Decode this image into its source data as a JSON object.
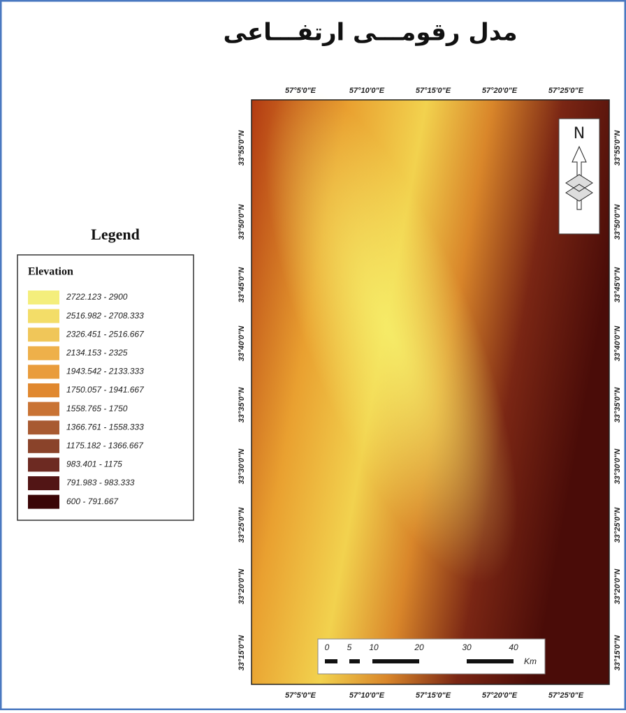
{
  "title": "مدل رقومـــی ارتفـــاعی",
  "legend": {
    "title": "Legend",
    "field": "Elevation",
    "items": [
      {
        "label": "2722.123 - 2900",
        "color": "#f4ee7c"
      },
      {
        "label": "2516.982 - 2708.333",
        "color": "#f3dd68"
      },
      {
        "label": "2326.451 - 2516.667",
        "color": "#f0c659"
      },
      {
        "label": "2134.153 - 2325",
        "color": "#eeb04a"
      },
      {
        "label": "1943.542 - 2133.333",
        "color": "#e99c3c"
      },
      {
        "label": "1750.057 - 1941.667",
        "color": "#e0882f"
      },
      {
        "label": "1558.765 - 1750",
        "color": "#c97334"
      },
      {
        "label": "1366.761 - 1558.333",
        "color": "#a85a31"
      },
      {
        "label": "1175.182 - 1366.667",
        "color": "#8a432a"
      },
      {
        "label": "983.401 - 1175",
        "color": "#6d2a22"
      },
      {
        "label": "791.983 - 983.333",
        "color": "#521515"
      },
      {
        "label": "600 - 791.667",
        "color": "#3a0506"
      }
    ]
  },
  "longitude_labels": {
    "top": [
      "57°5'0\"E",
      "57°10'0\"E",
      "57°15'0\"E",
      "57°20'0\"E",
      "57°25'0\"E"
    ],
    "bottom": [
      "57°5'0\"E",
      "57°10'0\"E",
      "57°15'0\"E",
      "57°20'0\"E",
      "57°25'0\"E"
    ]
  },
  "latitude_labels": {
    "left": [
      "33°55'0\"N",
      "33°50'0\"N",
      "33°45'0\"N",
      "33°40'0\"N",
      "33°35'0\"N",
      "33°30'0\"N",
      "33°25'0\"N",
      "33°20'0\"N",
      "33°15'0\"N"
    ],
    "right": [
      "33°55'0\"N",
      "33°50'0\"N",
      "33°45'0\"N",
      "33°40'0\"N",
      "33°35'0\"N",
      "33°30'0\"N",
      "33°25'0\"N",
      "33°20'0\"N",
      "33°15'0\"N"
    ]
  },
  "scale_bar": {
    "ticks": [
      "0",
      "5",
      "10",
      "20",
      "30",
      "40"
    ],
    "unit": "Km"
  },
  "north_arrow": "N"
}
